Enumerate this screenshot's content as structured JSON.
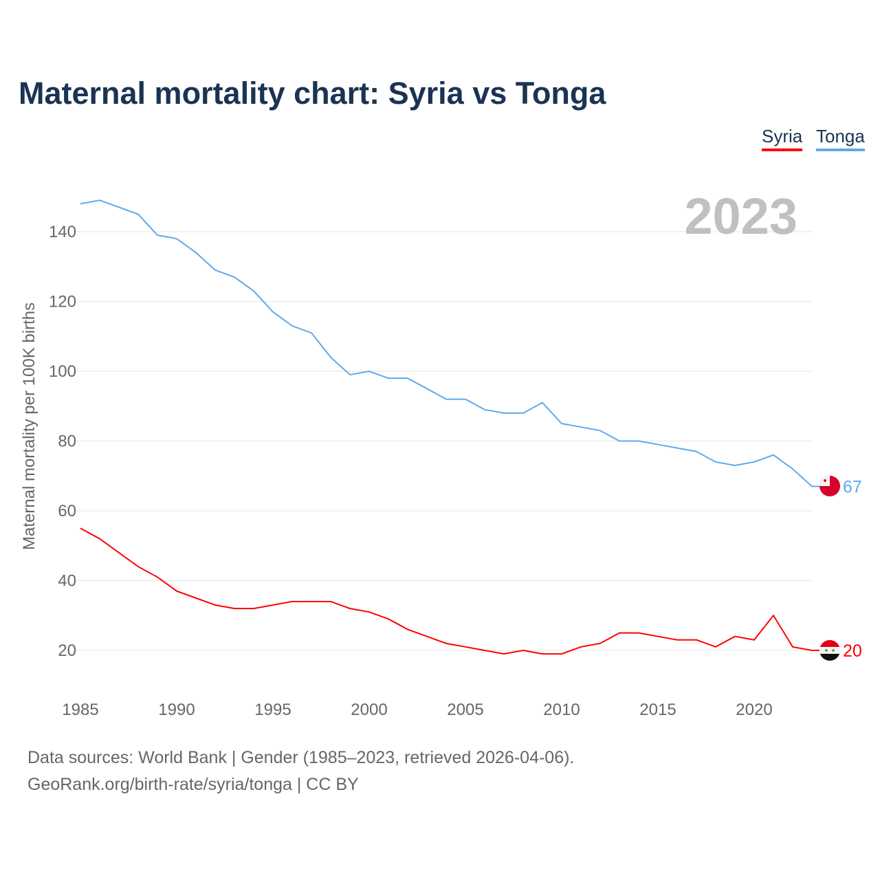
{
  "title": "Maternal mortality chart: Syria vs Tonga",
  "source_line1": "Data sources: World Bank | Gender (1985–2023, retrieved 2026-04-06).",
  "source_line2": "GeoRank.org/birth-rate/syria/tonga | CC BY",
  "chart_data": {
    "type": "line",
    "title": "Maternal mortality chart: Syria vs Tonga",
    "xlabel": "",
    "ylabel": "Maternal mortality per 100K births",
    "year_label": "2023",
    "xlim": [
      1985,
      2023
    ],
    "ylim": [
      10,
      150
    ],
    "xticks": [
      "1985",
      "1990",
      "1995",
      "2000",
      "2005",
      "2010",
      "2015",
      "2020"
    ],
    "yticks": [
      "20",
      "40",
      "60",
      "80",
      "100",
      "120",
      "140"
    ],
    "grid": true,
    "legend_position": "top-right",
    "x": [
      1985,
      1986,
      1987,
      1988,
      1989,
      1990,
      1991,
      1992,
      1993,
      1994,
      1995,
      1996,
      1997,
      1998,
      1999,
      2000,
      2001,
      2002,
      2003,
      2004,
      2005,
      2006,
      2007,
      2008,
      2009,
      2010,
      2011,
      2012,
      2013,
      2014,
      2015,
      2016,
      2017,
      2018,
      2019,
      2020,
      2021,
      2022,
      2023
    ],
    "series": [
      {
        "name": "Syria",
        "color": "#ff0000",
        "end_label": "20",
        "values": [
          55,
          52,
          48,
          44,
          41,
          37,
          35,
          33,
          32,
          32,
          33,
          34,
          34,
          34,
          32,
          31,
          29,
          26,
          24,
          22,
          21,
          20,
          19,
          20,
          19,
          19,
          21,
          22,
          25,
          25,
          24,
          23,
          23,
          21,
          24,
          23,
          30,
          21,
          20
        ]
      },
      {
        "name": "Tonga",
        "color": "#5fa8ec",
        "end_label": "67",
        "values": [
          148,
          149,
          147,
          145,
          139,
          138,
          134,
          129,
          127,
          123,
          117,
          113,
          111,
          104,
          99,
          100,
          98,
          98,
          95,
          92,
          92,
          89,
          88,
          88,
          91,
          85,
          84,
          83,
          80,
          80,
          79,
          78,
          77,
          74,
          73,
          74,
          76,
          72,
          67
        ]
      }
    ]
  }
}
